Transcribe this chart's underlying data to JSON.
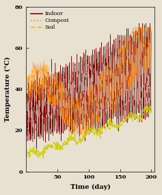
{
  "title": "",
  "xlabel": "Time (day)",
  "ylabel": "Temperature (°C)",
  "xlim": [
    0,
    205
  ],
  "ylim": [
    0,
    80
  ],
  "xticks": [
    50,
    100,
    150,
    200
  ],
  "yticks": [
    0,
    20,
    40,
    60,
    80
  ],
  "legend_labels": [
    "Indoor",
    "Compost",
    "Soil"
  ],
  "indoor_color": "#7B0000",
  "compost_color": "#FF8800",
  "soil_color": "#CCCC00",
  "figsize": [
    2.37,
    2.85
  ],
  "dpi": 100,
  "bg_color": "#E8E0D0"
}
